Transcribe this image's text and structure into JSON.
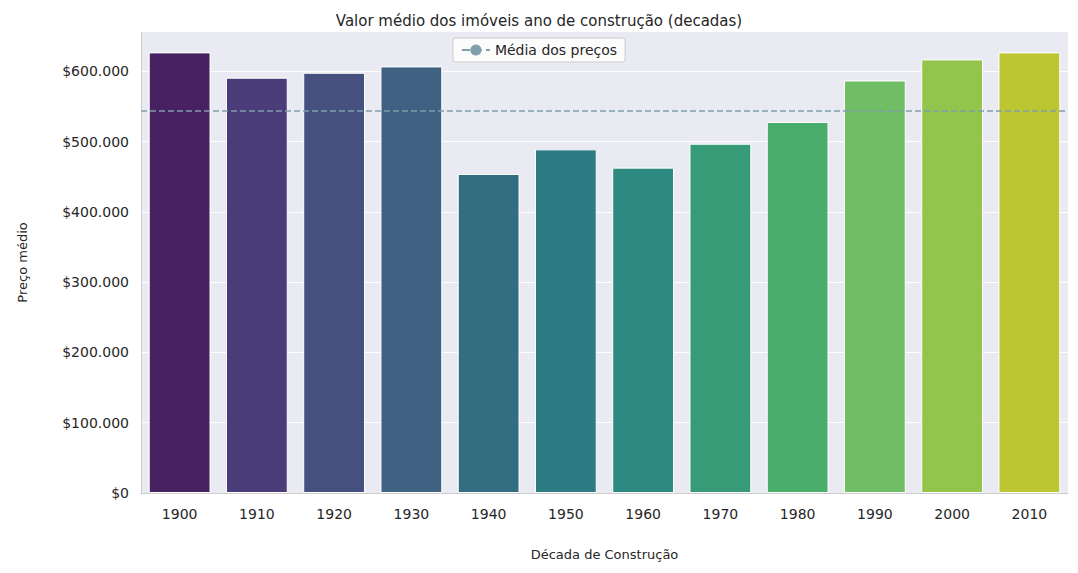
{
  "chart_data": {
    "type": "bar",
    "title": "Valor médio dos imóveis ano de construção (decadas)",
    "x_label": "Década de Construção",
    "y_label": "Preço médio",
    "categories": [
      "1900",
      "1910",
      "1920",
      "1930",
      "1940",
      "1950",
      "1960",
      "1970",
      "1980",
      "1990",
      "2000",
      "2010"
    ],
    "values": [
      627000,
      591000,
      598000,
      607000,
      454000,
      489000,
      463000,
      497000,
      528000,
      587000,
      617000,
      627000
    ],
    "colors": [
      "#482163",
      "#493c79",
      "#46507f",
      "#3f6283",
      "#336d82",
      "#2e7c83",
      "#2d8a80",
      "#389b78",
      "#4aad6b",
      "#6fbe66",
      "#93c44c",
      "#bcc632"
    ],
    "mean_line": {
      "name": "Média dos preços",
      "value": 544000,
      "color": "#7f9faa",
      "line_style": "dashed"
    },
    "ylim": [
      0,
      656000
    ],
    "yticks": [
      {
        "value": 0,
        "label": "$0"
      },
      {
        "value": 100000,
        "label": "$100.000"
      },
      {
        "value": 200000,
        "label": "$200.000"
      },
      {
        "value": 300000,
        "label": "$300.000"
      },
      {
        "value": 400000,
        "label": "$400.000"
      },
      {
        "value": 500000,
        "label": "$500.000"
      },
      {
        "value": 600000,
        "label": "$600.000"
      }
    ],
    "grid": true,
    "legend": "top"
  }
}
